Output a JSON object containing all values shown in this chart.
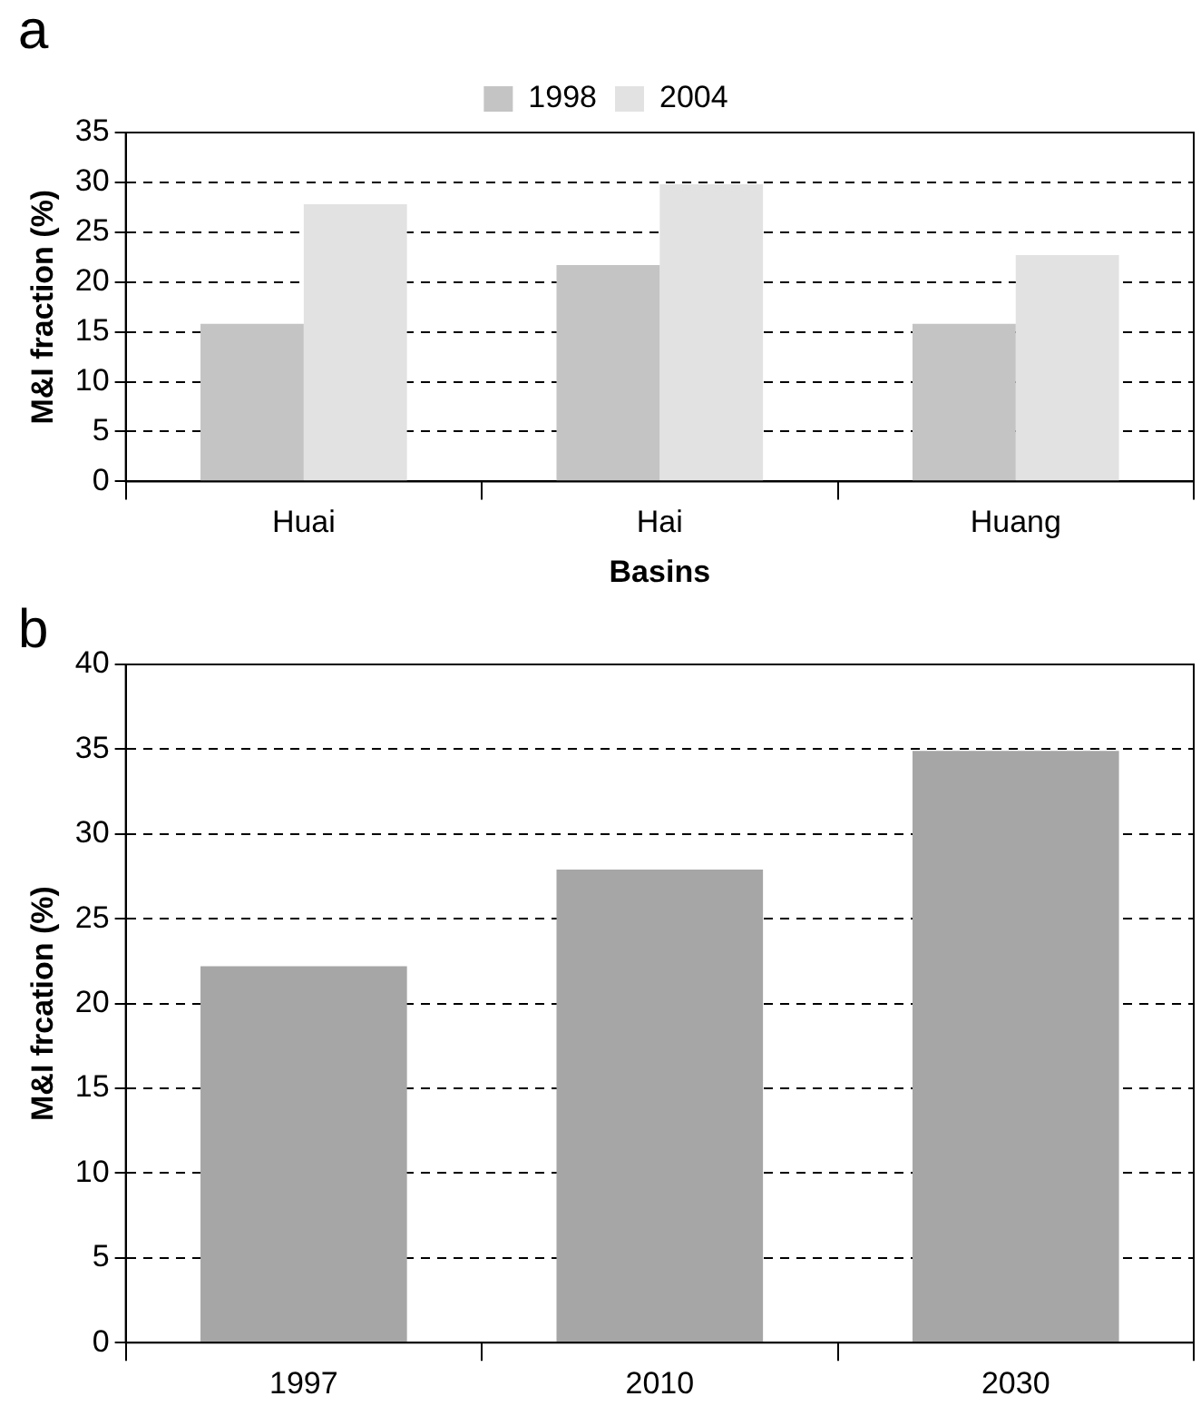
{
  "chart_data": [
    {
      "type": "bar",
      "title": "a",
      "xlabel": "Basins",
      "ylabel": "M&I fraction (%)",
      "categories": [
        "Huai",
        "Hai",
        "Huang"
      ],
      "series": [
        {
          "name": "1998",
          "color": "#c4c4c4",
          "values": [
            15.8,
            21.7,
            15.8
          ]
        },
        {
          "name": "2004",
          "color": "#e2e2e2",
          "values": [
            27.8,
            29.8,
            22.7
          ]
        }
      ],
      "ylim": [
        0,
        35
      ],
      "yticks": [
        0,
        5,
        10,
        15,
        20,
        25,
        30,
        35
      ],
      "grid": "y",
      "legend": "top"
    },
    {
      "type": "bar",
      "title": "b",
      "ylabel": "M&I frcation (%)",
      "categories": [
        "1997",
        "2010",
        "2030"
      ],
      "series": [
        {
          "color": "#a6a6a6",
          "values": [
            22.2,
            27.9,
            34.9
          ]
        }
      ],
      "ylim": [
        0,
        40
      ],
      "yticks": [
        0,
        5,
        10,
        15,
        20,
        25,
        30,
        35,
        40
      ],
      "grid": "y"
    }
  ]
}
